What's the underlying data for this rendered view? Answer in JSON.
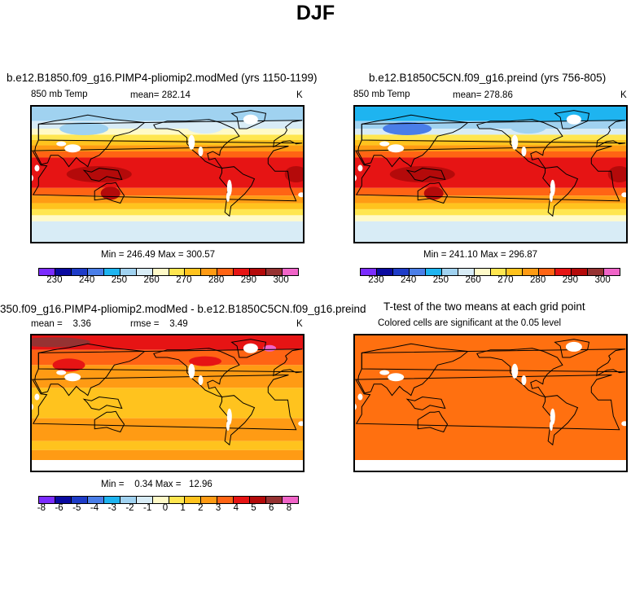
{
  "figure": {
    "title": "DJF"
  },
  "panels": [
    {
      "id": "model",
      "title": "b.e12.B1850.f09_g16.PIMP4-pliomip2.modMed (yrs 1150-1199)",
      "left_label": "850 mb Temp",
      "center_label": "mean= 282.14",
      "right_label": "K",
      "stats": "Min = 246.49 Max = 300.57"
    },
    {
      "id": "control",
      "title": "b.e12.B1850C5CN.f09_g16.preind (yrs 756-805)",
      "left_label": "850 mb Temp",
      "center_label": "mean= 278.86",
      "right_label": "K",
      "stats": "Min = 241.10 Max = 296.87"
    },
    {
      "id": "difference",
      "title": "350.f09_g16.PIMP4-pliomip2.modMed - b.e12.B1850C5CN.f09_g16.preind",
      "left_label": "mean =    3.36",
      "center_label": "rmse =    3.49",
      "right_label": "K",
      "stats": "Min =    0.34 Max =   12.96"
    },
    {
      "id": "ttest",
      "title": "T-test of the two means at each grid point",
      "subtitle": "Colored cells are significant at the 0.05 level"
    }
  ],
  "colorbar_abs": {
    "colors": [
      "#7b2cff",
      "#0a0aa0",
      "#1e3cc8",
      "#4a7ee8",
      "#1eb4f0",
      "#a0d2f0",
      "#d8ecf6",
      "#fffac8",
      "#ffe650",
      "#ffc31e",
      "#ff9b14",
      "#ff6414",
      "#e61414",
      "#b40a0a",
      "#963232",
      "#f064c8"
    ],
    "tick_labels": [
      "230",
      "240",
      "250",
      "260",
      "270",
      "280",
      "290",
      "300"
    ]
  },
  "colorbar_diff": {
    "colors": [
      "#7b2cff",
      "#0a0aa0",
      "#1e3cc8",
      "#4a7ee8",
      "#1eb4f0",
      "#a0d2f0",
      "#d8ecf6",
      "#fffac8",
      "#ffe650",
      "#ffc31e",
      "#ff9b14",
      "#ff6414",
      "#e61414",
      "#b40a0a",
      "#963232",
      "#f064c8"
    ],
    "tick_labels": [
      "-8",
      "-6",
      "-5",
      "-4",
      "-3",
      "-2",
      "-1",
      "0",
      "1",
      "2",
      "3",
      "4",
      "5",
      "6",
      "8"
    ]
  },
  "map_colors": {
    "hot": "#e61414",
    "hotter": "#b40a0a",
    "darkred": "#963232",
    "orange_red": "#ff6414",
    "orange": "#ff9b14",
    "amber": "#ffc31e",
    "yellow": "#ffe650",
    "cream": "#fffac8",
    "pale_blue": "#d8ecf6",
    "light_blue": "#a0d2f0",
    "cyan": "#1eb4f0",
    "mid_blue": "#4a7ee8",
    "pink": "#f064c8",
    "ttest": "#ff7010",
    "coast": "#000000"
  }
}
